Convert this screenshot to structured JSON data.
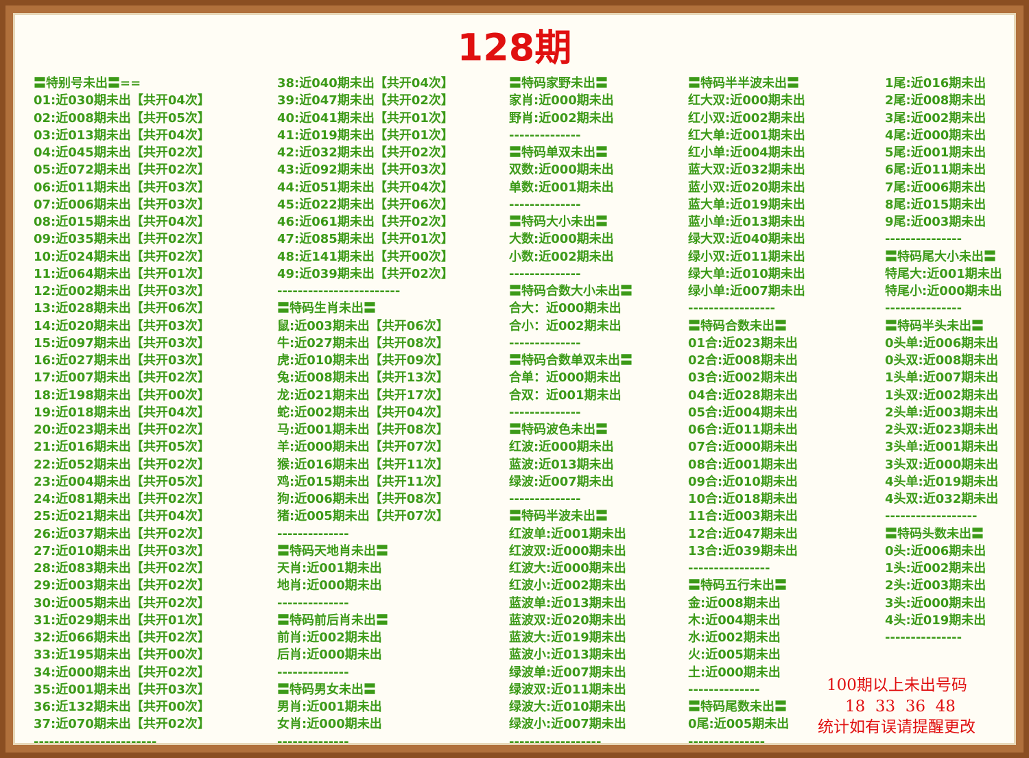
{
  "title": "128期",
  "columns": [
    [
      "〓特别号未出〓==",
      "01:近030期未出【共开04次】",
      "02:近008期未出【共开05次】",
      "03:近013期未出【共开04次】",
      "04:近045期未出【共开02次】",
      "05:近072期未出【共开02次】",
      "06:近011期未出【共开03次】",
      "07:近006期未出【共开03次】",
      "08:近015期未出【共开04次】",
      "09:近035期未出【共开02次】",
      "10:近024期未出【共开02次】",
      "11:近064期未出【共开01次】",
      "12:近002期未出【共开03次】",
      "13:近028期未出【共开06次】",
      "14:近020期未出【共开03次】",
      "15:近097期未出【共开03次】",
      "16:近027期未出【共开03次】",
      "17:近007期未出【共开02次】",
      "18:近198期未出【共开00次】",
      "19:近018期未出【共开04次】",
      "20:近023期未出【共开02次】",
      "21:近016期未出【共开05次】",
      "22:近052期未出【共开02次】",
      "23:近004期未出【共开05次】",
      "24:近081期未出【共开02次】",
      "25:近021期未出【共开04次】",
      "26:近037期未出【共开02次】",
      "27:近010期未出【共开03次】",
      "28:近083期未出【共开02次】",
      "29:近003期未出【共开02次】",
      "30:近005期未出【共开02次】",
      "31:近029期未出【共开01次】",
      "32:近066期未出【共开02次】",
      "33:近195期未出【共开00次】",
      "34:近000期未出【共开02次】",
      "35:近001期未出【共开03次】",
      "36:近132期未出【共开00次】",
      "37:近070期未出【共开02次】",
      "------------------------"
    ],
    [
      "38:近040期未出【共开04次】",
      "39:近047期未出【共开02次】",
      "40:近041期未出【共开01次】",
      "41:近019期未出【共开01次】",
      "42:近032期未出【共开02次】",
      "43:近092期未出【共开03次】",
      "44:近051期未出【共开04次】",
      "45:近022期未出【共开06次】",
      "46:近061期未出【共开02次】",
      "47:近085期未出【共开01次】",
      "48:近141期未出【共开00次】",
      "49:近039期未出【共开02次】",
      "------------------------",
      "〓特码生肖未出〓",
      "鼠:近003期未出【共开06次】",
      "牛:近027期未出【共开08次】",
      "虎:近010期未出【共开09次】",
      "兔:近008期未出【共开13次】",
      "龙:近021期未出【共开17次】",
      "蛇:近002期未出【共开04次】",
      "马:近001期未出【共开08次】",
      "羊:近000期未出【共开07次】",
      "猴:近016期未出【共开11次】",
      "鸡:近015期未出【共开11次】",
      "狗:近006期未出【共开08次】",
      "猪:近005期未出【共开07次】",
      "--------------",
      "〓特码天地肖未出〓",
      "天肖:近001期未出",
      "地肖:近000期未出",
      "--------------",
      "〓特码前后肖未出〓",
      "前肖:近002期未出",
      "后肖:近000期未出",
      "--------------",
      "〓特码男女未出〓",
      "男肖:近001期未出",
      "女肖:近000期未出",
      "--------------"
    ],
    [
      "〓特码家野未出〓",
      "家肖:近000期未出",
      "野肖:近002期未出",
      "--------------",
      "〓特码单双未出〓",
      "双数:近000期未出",
      "单数:近001期未出",
      "--------------",
      "〓特码大小未出〓",
      "大数:近000期未出",
      "小数:近002期未出",
      "--------------",
      "〓特码合数大小未出〓",
      "合大：近000期未出",
      "合小：近002期未出",
      "--------------",
      "〓特码合数单双未出〓",
      "合单：近000期未出",
      "合双：近001期未出",
      "--------------",
      "〓特码波色未出〓",
      "红波:近000期未出",
      "蓝波:近013期未出",
      "绿波:近007期未出",
      "--------------",
      "〓特码半波未出〓",
      "红波单:近001期未出",
      "红波双:近000期未出",
      "红波大:近000期未出",
      "红波小:近002期未出",
      "蓝波单:近013期未出",
      "蓝波双:近020期未出",
      "蓝波大:近019期未出",
      "蓝波小:近013期未出",
      "绿波单:近007期未出",
      "绿波双:近011期未出",
      "绿波大:近010期未出",
      "绿波小:近007期未出",
      "------------------"
    ],
    [
      "〓特码半半波未出〓",
      "红大双:近000期未出",
      "红小双:近002期未出",
      "红大单:近001期未出",
      "红小单:近004期未出",
      "蓝大双:近032期未出",
      "蓝小双:近020期未出",
      "蓝大单:近019期未出",
      "蓝小单:近013期未出",
      "绿大双:近040期未出",
      "绿小双:近011期未出",
      "绿大单:近010期未出",
      "绿小单:近007期未出",
      "-----------------",
      "〓特码合数未出〓",
      "01合:近023期未出",
      "02合:近008期未出",
      "03合:近002期未出",
      "04合:近028期未出",
      "05合:近004期未出",
      "06合:近011期未出",
      "07合:近000期未出",
      "08合:近001期未出",
      "09合:近010期未出",
      "10合:近018期未出",
      "11合:近003期未出",
      "12合:近047期未出",
      "13合:近039期未出",
      "----------------",
      "〓特码五行未出〓",
      "金:近008期未出",
      "木:近004期未出",
      "水:近002期未出",
      "火:近005期未出",
      "土:近000期未出",
      "--------------",
      "〓特码尾数未出〓",
      "0尾:近005期未出",
      "---------------"
    ],
    [
      "1尾:近016期未出",
      "2尾:近008期未出",
      "3尾:近002期未出",
      "4尾:近000期未出",
      "5尾:近001期未出",
      "6尾:近011期未出",
      "7尾:近006期未出",
      "8尾:近015期未出",
      "9尾:近003期未出",
      "---------------",
      "〓特码尾大小未出〓",
      "特尾大:近001期未出",
      "特尾小:近000期未出",
      "---------------",
      "〓特码半头未出〓",
      "0头单:近006期未出",
      "0头双:近008期未出",
      "1头单:近007期未出",
      "1头双:近002期未出",
      "2头单:近003期未出",
      "2头双:近023期未出",
      "3头单:近001期未出",
      "3头双:近000期未出",
      "4头单:近019期未出",
      "4头双:近032期未出",
      "------------------",
      "〓特码头数未出〓",
      "0头:近006期未出",
      "1头:近002期未出",
      "2头:近003期未出",
      "3头:近000期未出",
      "4头:近019期未出",
      "---------------"
    ]
  ],
  "note": [
    "100期以上未出号码",
    "18  33  36  48",
    "统计如有误请提醒更改"
  ]
}
